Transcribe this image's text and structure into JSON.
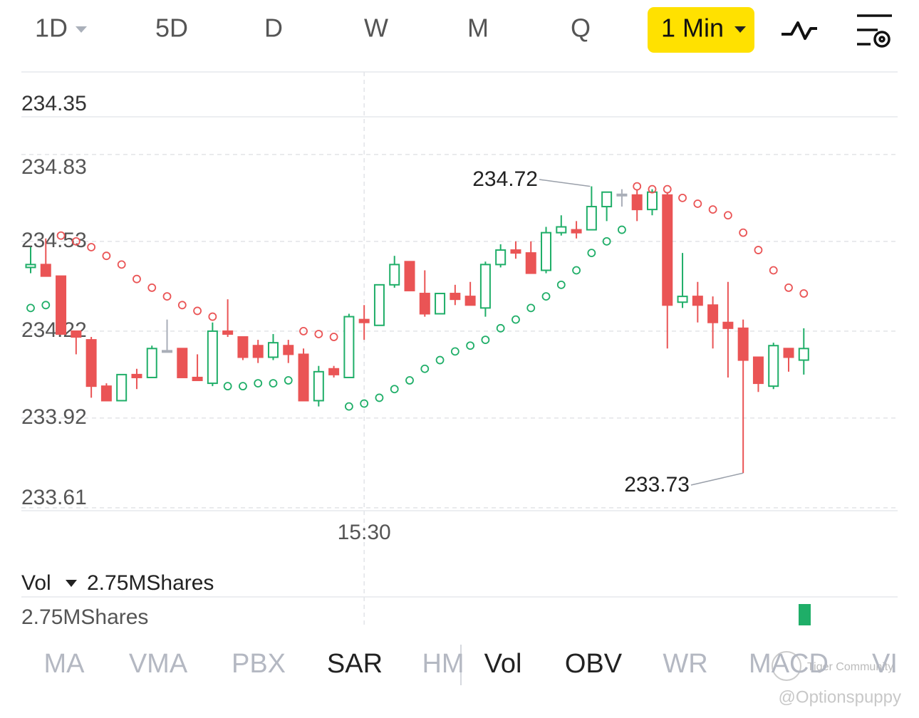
{
  "toolbar": {
    "tabs": [
      "1D",
      "5D",
      "D",
      "W",
      "M",
      "Q",
      "1 Min"
    ],
    "active": 6
  },
  "chart_data": {
    "type": "candlestick",
    "header_value": 234.35,
    "categories": [
      null,
      null,
      null,
      null,
      null,
      null,
      null,
      null,
      null,
      null,
      null,
      null,
      null,
      null,
      null,
      null,
      null,
      null,
      null,
      null,
      null,
      null,
      "15:30",
      null,
      null,
      null,
      null,
      null,
      null,
      null,
      null,
      null,
      null,
      null,
      null,
      null,
      null,
      null,
      null,
      null,
      null,
      null,
      null,
      null,
      null,
      null,
      null,
      null,
      null,
      null,
      null,
      null
    ],
    "open": [
      234.44,
      234.45,
      234.41,
      234.22,
      234.19,
      234.03,
      233.98,
      234.07,
      234.06,
      234.15,
      234.16,
      234.06,
      234.04,
      234.22,
      234.2,
      234.17,
      234.13,
      234.17,
      234.14,
      233.98,
      234.09,
      234.06,
      234.26,
      234.24,
      234.38,
      234.46,
      234.35,
      234.28,
      234.35,
      234.34,
      234.3,
      234.45,
      234.5,
      234.49,
      234.43,
      234.56,
      234.57,
      234.57,
      234.65,
      234.69,
      234.69,
      234.64,
      234.69,
      234.32,
      234.34,
      234.31,
      234.25,
      234.23,
      234.13,
      234.03,
      234.16,
      234.12
    ],
    "high": [
      234.51,
      234.54,
      234.41,
      234.22,
      234.2,
      234.04,
      234.07,
      234.09,
      234.17,
      234.26,
      234.16,
      234.14,
      234.25,
      234.33,
      234.2,
      234.19,
      234.21,
      234.19,
      234.16,
      234.1,
      234.1,
      234.28,
      234.31,
      234.38,
      234.48,
      234.46,
      234.43,
      234.35,
      234.38,
      234.39,
      234.46,
      234.52,
      234.53,
      234.53,
      234.58,
      234.62,
      234.6,
      234.72,
      234.7,
      234.71,
      234.71,
      234.71,
      234.7,
      234.49,
      234.39,
      234.34,
      234.39,
      234.26,
      234.13,
      234.18,
      234.16,
      234.23
    ],
    "low": [
      234.42,
      234.41,
      234.21,
      234.14,
      233.99,
      233.98,
      233.98,
      234.02,
      234.06,
      234.15,
      234.06,
      234.05,
      234.03,
      234.2,
      234.12,
      234.11,
      234.12,
      234.11,
      233.98,
      233.96,
      234.06,
      234.06,
      234.19,
      234.24,
      234.37,
      234.36,
      234.27,
      234.28,
      234.31,
      234.31,
      234.27,
      234.44,
      234.47,
      234.42,
      234.42,
      234.55,
      234.54,
      234.57,
      234.6,
      234.65,
      234.6,
      234.62,
      234.16,
      234.3,
      234.25,
      234.16,
      234.06,
      233.73,
      234.01,
      234.02,
      234.08,
      234.07
    ],
    "close": [
      234.45,
      234.41,
      234.21,
      234.2,
      234.03,
      233.98,
      234.07,
      234.06,
      234.16,
      234.15,
      234.06,
      234.05,
      234.22,
      234.21,
      234.13,
      234.13,
      234.18,
      234.14,
      233.98,
      234.08,
      234.07,
      234.27,
      234.25,
      234.38,
      234.45,
      234.36,
      234.28,
      234.35,
      234.33,
      234.31,
      234.45,
      234.5,
      234.49,
      234.42,
      234.56,
      234.58,
      234.56,
      234.65,
      234.7,
      234.69,
      234.64,
      234.7,
      234.31,
      234.34,
      234.31,
      234.25,
      234.23,
      234.12,
      234.04,
      234.17,
      234.13,
      234.16
    ],
    "sar": [
      234.3,
      234.31,
      234.55,
      234.53,
      234.51,
      234.48,
      234.45,
      234.4,
      234.37,
      234.34,
      234.31,
      234.29,
      234.27,
      234.03,
      234.03,
      234.04,
      234.04,
      234.05,
      234.22,
      234.21,
      234.2,
      233.96,
      233.97,
      233.99,
      234.02,
      234.05,
      234.09,
      234.12,
      234.15,
      234.17,
      234.19,
      234.23,
      234.26,
      234.3,
      234.34,
      234.38,
      234.43,
      234.49,
      234.53,
      234.57,
      234.72,
      234.71,
      234.71,
      234.68,
      234.66,
      234.64,
      234.62,
      234.56,
      234.5,
      234.43,
      234.37,
      234.35
    ],
    "high_label": 234.72,
    "low_label": 233.73,
    "ylim": [
      233.6,
      234.96
    ],
    "yticks": [
      234.83,
      234.53,
      234.22,
      233.92,
      233.61
    ],
    "grid": true,
    "up_color": "#1fae68",
    "down_color": "#ea5455",
    "flat_color": "#a9aeb8"
  },
  "volume": {
    "label": "Vol",
    "value": "2.75MShares",
    "axis_label": "2.75MShares"
  },
  "indicator_tabs": {
    "main": [
      "MA",
      "VMA",
      "PBX",
      "SAR",
      "HM"
    ],
    "sub": [
      "Vol",
      "OBV",
      "WR",
      "MACD",
      "VI"
    ],
    "active_main": [
      3
    ],
    "active_sub": [
      0,
      1
    ]
  },
  "watermark": {
    "community": "Tiger Community",
    "handle": "@Optionspuppy"
  }
}
